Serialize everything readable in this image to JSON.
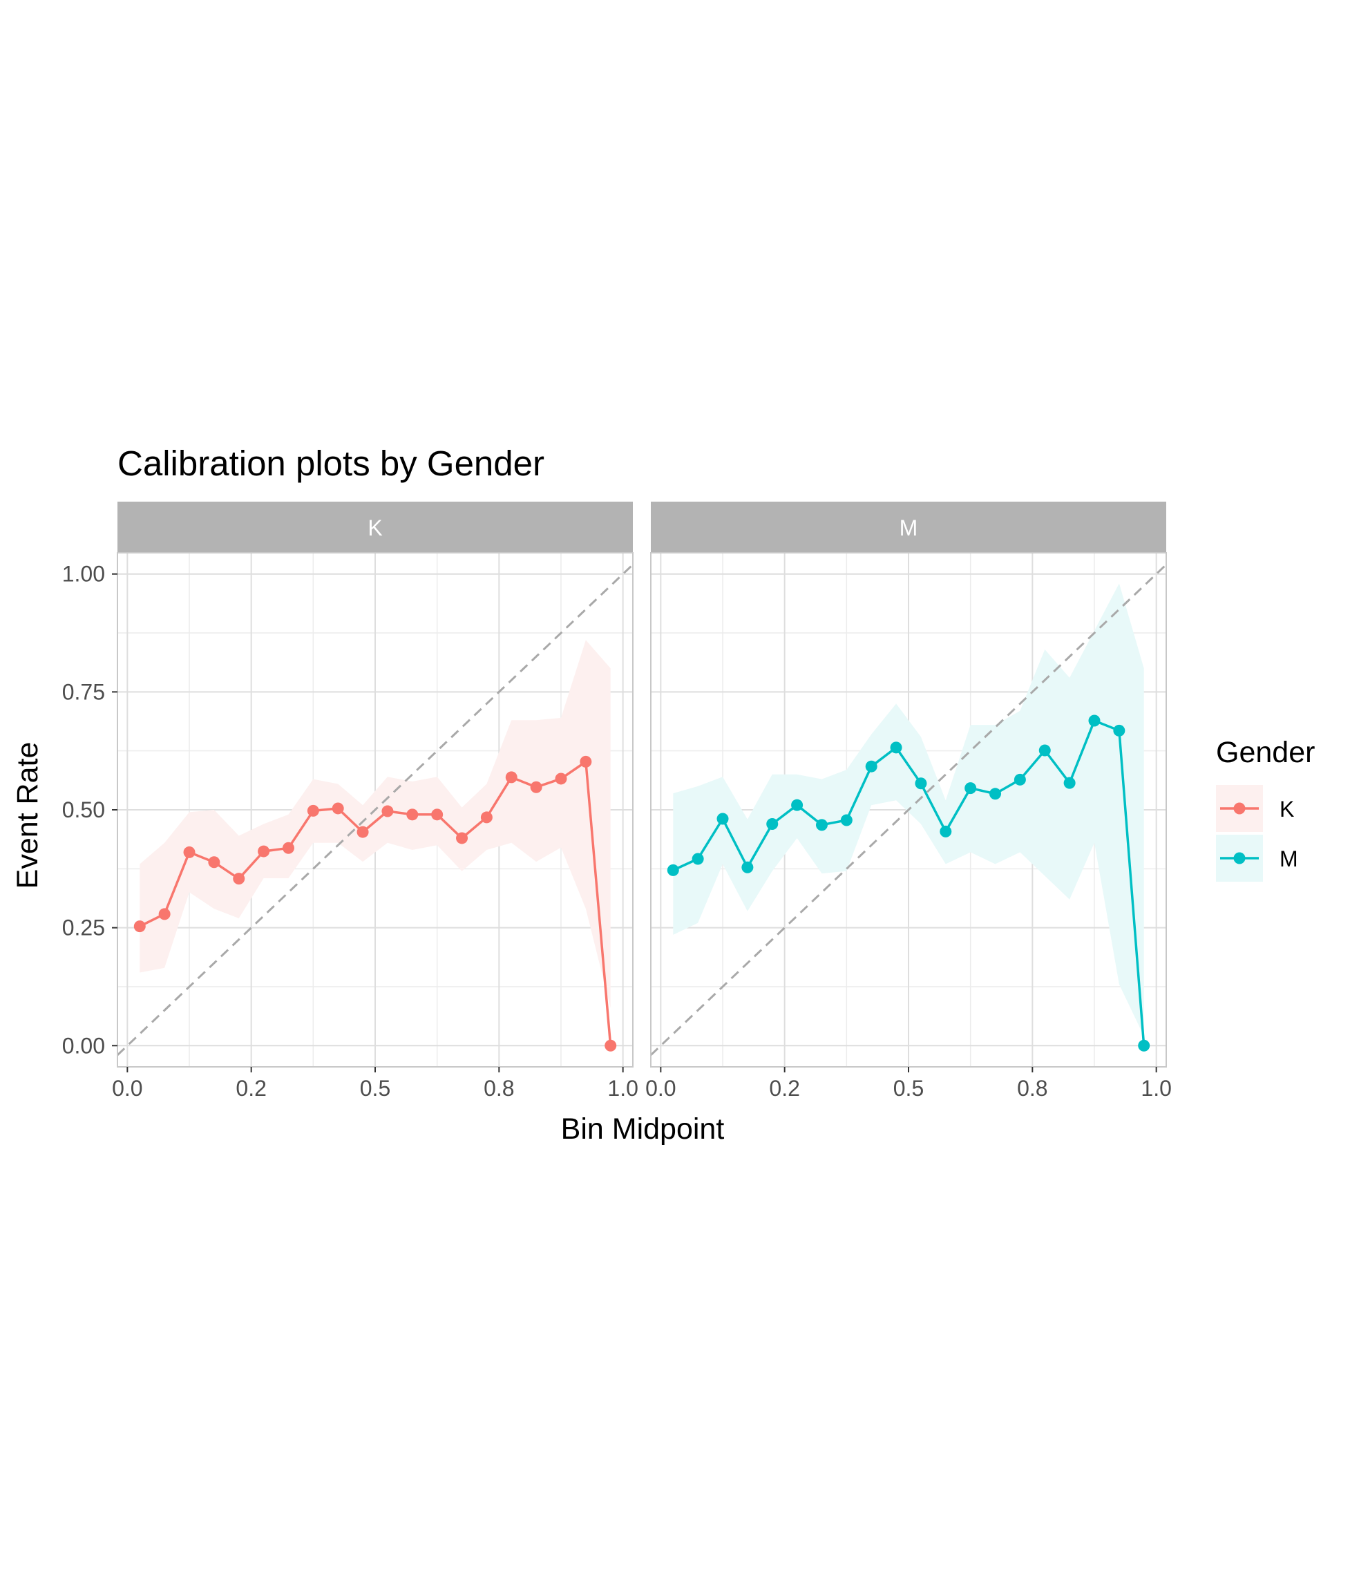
{
  "chart_data": {
    "type": "line",
    "title": "Calibration plots by Gender",
    "xlabel": "Bin Midpoint",
    "ylabel": "Event Rate",
    "xlim": [
      -0.02,
      1.02
    ],
    "ylim": [
      -0.045,
      1.045
    ],
    "x_tick_labels": [
      "0.0",
      "0.2",
      "0.5",
      "0.8",
      "1.0"
    ],
    "x_ticks": [
      0,
      0.25,
      0.5,
      0.75,
      1.0
    ],
    "y_tick_labels": [
      "0.00",
      "0.25",
      "0.50",
      "0.75",
      "1.00"
    ],
    "y_ticks": [
      0,
      0.25,
      0.5,
      0.75,
      1.0
    ],
    "grid": true,
    "reference_line": {
      "type": "diagonal",
      "style": "dashed",
      "color": "#a9a9a9"
    },
    "legend": {
      "title": "Gender",
      "position": "right",
      "entries": [
        "K",
        "M"
      ]
    },
    "x": [
      0.025,
      0.075,
      0.125,
      0.175,
      0.225,
      0.275,
      0.325,
      0.375,
      0.425,
      0.475,
      0.525,
      0.575,
      0.625,
      0.675,
      0.725,
      0.775,
      0.825,
      0.875,
      0.925,
      0.975
    ],
    "panels": [
      {
        "strip_label": "K",
        "series_name": "K",
        "color": "#F8766D",
        "fill": "#FDF0EF",
        "y": [
          0.253,
          0.279,
          0.41,
          0.389,
          0.354,
          0.412,
          0.419,
          0.498,
          0.503,
          0.453,
          0.497,
          0.49,
          0.49,
          0.44,
          0.484,
          0.569,
          0.548,
          0.566,
          0.602,
          0.0
        ],
        "lower": [
          0.155,
          0.165,
          0.325,
          0.29,
          0.27,
          0.355,
          0.355,
          0.43,
          0.43,
          0.39,
          0.43,
          0.415,
          0.425,
          0.37,
          0.415,
          0.43,
          0.39,
          0.42,
          0.29,
          0.08
        ],
        "upper": [
          0.385,
          0.43,
          0.495,
          0.5,
          0.445,
          0.47,
          0.49,
          0.565,
          0.555,
          0.51,
          0.57,
          0.56,
          0.57,
          0.505,
          0.555,
          0.69,
          0.69,
          0.695,
          0.86,
          0.8
        ]
      },
      {
        "strip_label": "M",
        "series_name": "M",
        "color": "#00BFC4",
        "fill": "#E8F9F9",
        "y": [
          0.372,
          0.396,
          0.481,
          0.378,
          0.47,
          0.51,
          0.468,
          0.478,
          0.592,
          0.632,
          0.556,
          0.454,
          0.546,
          0.534,
          0.564,
          0.626,
          0.557,
          0.689,
          0.668,
          0.0
        ],
        "lower": [
          0.235,
          0.26,
          0.385,
          0.285,
          0.37,
          0.44,
          0.365,
          0.37,
          0.51,
          0.52,
          0.47,
          0.385,
          0.41,
          0.385,
          0.41,
          0.36,
          0.31,
          0.43,
          0.13,
          0.02
        ],
        "upper": [
          0.535,
          0.55,
          0.57,
          0.48,
          0.575,
          0.575,
          0.565,
          0.585,
          0.66,
          0.725,
          0.655,
          0.52,
          0.68,
          0.68,
          0.71,
          0.84,
          0.78,
          0.88,
          0.98,
          0.8
        ]
      }
    ]
  }
}
